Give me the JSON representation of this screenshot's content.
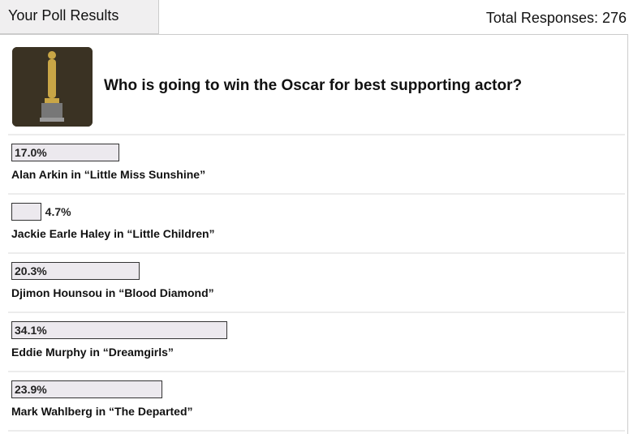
{
  "header": {
    "tab": "Your Poll Results",
    "total": "Total Responses: 276"
  },
  "poll": {
    "question": "Who is going to win the Oscar for best supporting actor?",
    "options": [
      {
        "value": 17.0,
        "value_label": "17.0%",
        "label": "Alan Arkin in “Little Miss Sunshine”"
      },
      {
        "value": 4.7,
        "value_label": "4.7%",
        "label": "Jackie Earle Haley in “Little Children”"
      },
      {
        "value": 20.3,
        "value_label": "20.3%",
        "label": "Djimon Hounsou in “Blood Diamond”"
      },
      {
        "value": 34.1,
        "value_label": "34.1%",
        "label": "Eddie Murphy in “Dreamgirls”"
      },
      {
        "value": 23.9,
        "value_label": "23.9%",
        "label": "Mark Wahlberg in “The Departed”"
      }
    ]
  }
}
